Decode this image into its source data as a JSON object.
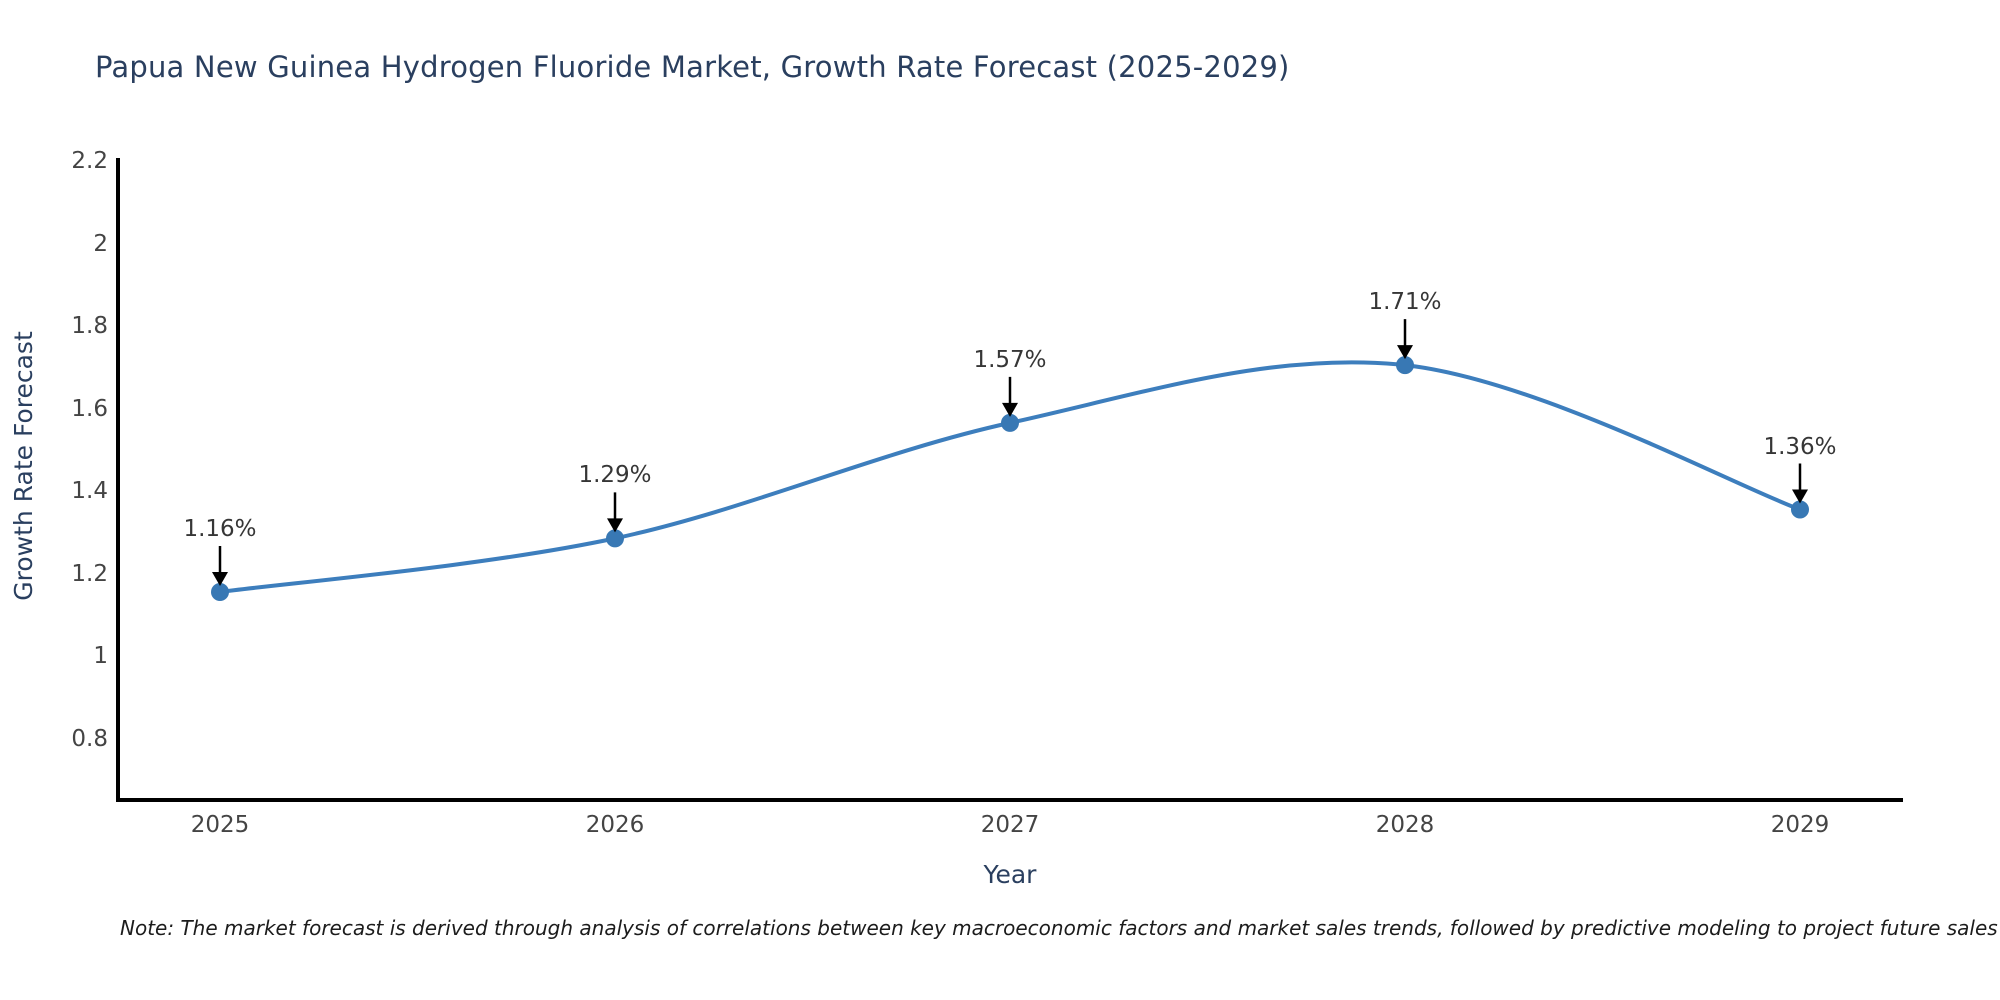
{
  "title": "Papua New Guinea Hydrogen Fluoride Market, Growth Rate Forecast (2025-2029)",
  "note": "Note: The market forecast is derived through analysis of correlations between key macroeconomic factors and market sales trends, followed by predictive modeling to project future sales",
  "chart_data": {
    "type": "line",
    "title": "Papua New Guinea Hydrogen Fluoride Market, Growth Rate Forecast (2025-2029)",
    "xlabel": "Year",
    "ylabel": "Growth Rate Forecast",
    "x": [
      2025,
      2026,
      2027,
      2028,
      2029
    ],
    "values": [
      1.16,
      1.29,
      1.57,
      1.71,
      1.36
    ],
    "point_labels": [
      "1.16%",
      "1.29%",
      "1.57%",
      "1.71%",
      "1.36%"
    ],
    "x_tick_labels": [
      "2025",
      "2026",
      "2027",
      "2028",
      "2029"
    ],
    "y_tick_values": [
      2.2,
      2.0,
      1.8,
      1.6,
      1.4,
      1.2,
      1.0,
      0.8
    ],
    "y_tick_labels": [
      "2.2",
      "2",
      "1.8",
      "1.6",
      "1.4",
      "1.2",
      "1",
      "0.8"
    ],
    "xlim": [
      2024.74,
      2029.26
    ],
    "ylim": [
      0.656,
      2.2
    ],
    "curve": "spline",
    "grid": false,
    "legend_position": "none",
    "line_color": "#3d7ebd",
    "marker_color": "#3878b4",
    "axis_color": "#000000",
    "annotation_arrow_color": "#000000",
    "title_color": "#2a3f5f",
    "tick_color": "#444444"
  }
}
